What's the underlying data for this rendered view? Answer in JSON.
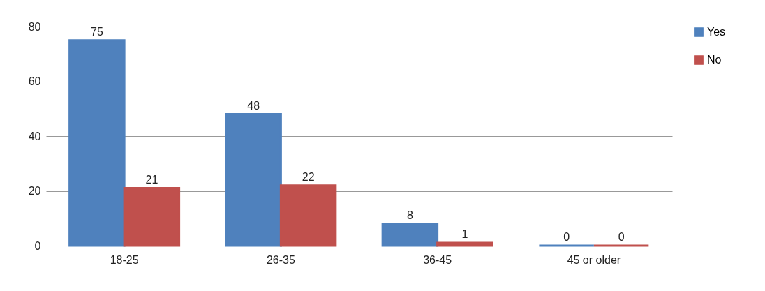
{
  "chart_data": {
    "type": "bar",
    "categories": [
      "18-25",
      "26-35",
      "36-45",
      "45 or older"
    ],
    "series": [
      {
        "name": "Yes",
        "color": "#4f81bd",
        "values": [
          75,
          48,
          8,
          0
        ]
      },
      {
        "name": "No",
        "color": "#c0504d",
        "values": [
          21,
          22,
          1,
          0
        ]
      }
    ],
    "ylim": [
      0,
      80
    ],
    "yticks": [
      0,
      20,
      40,
      60,
      80
    ],
    "grid": "y",
    "legend": "right",
    "data_labels": true
  }
}
